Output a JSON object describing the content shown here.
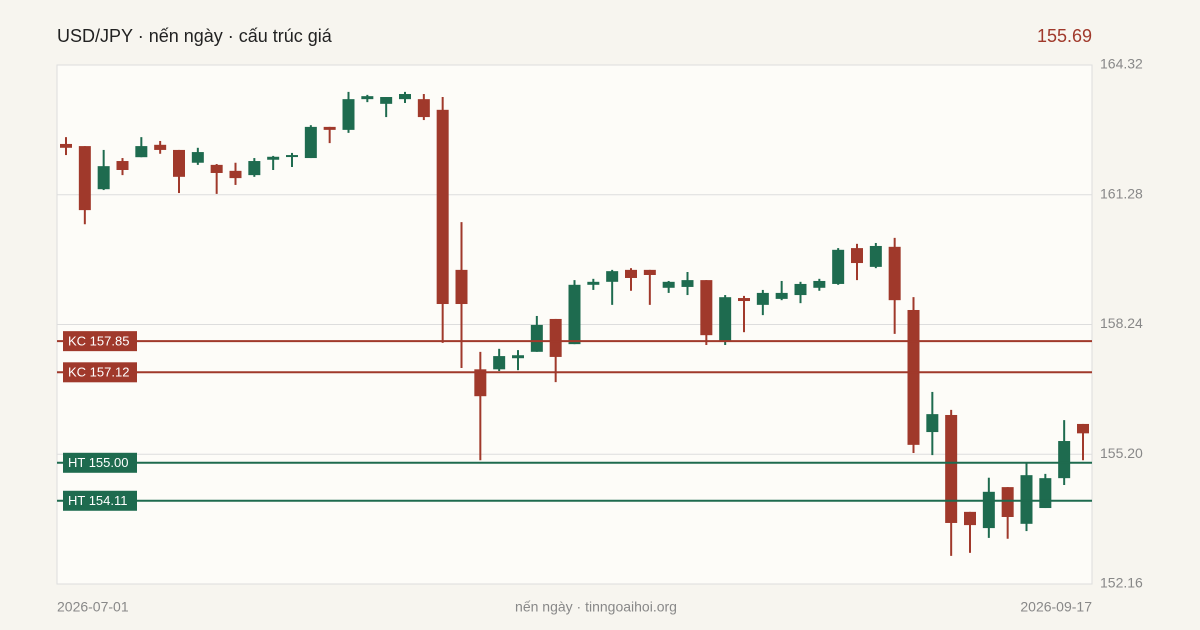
{
  "chart_data": {
    "type": "candlestick",
    "title": "USD/JPY · nến ngày · cấu trúc giá",
    "last_price": 155.69,
    "x_labels": [
      "2026-07-01",
      "2026-09-17"
    ],
    "footer": "nến ngày · tinngoaihoi.org",
    "up_color": "#1e6b4f",
    "down_color": "#a0392b",
    "ylim": [
      152.16,
      164.32
    ],
    "yticks": [
      164.32,
      161.28,
      158.24,
      {
        "value": 155.2,
        "label": "155.20"
      },
      152.16
    ],
    "grid": true,
    "open": [
      162.47,
      162.42,
      161.41,
      162.07,
      162.16,
      162.45,
      162.33,
      162.03,
      161.98,
      161.84,
      161.74,
      162.1,
      162.17,
      162.14,
      162.87,
      162.8,
      163.52,
      163.41,
      163.52,
      163.52,
      163.27,
      159.52,
      157.19,
      157.19,
      157.45,
      157.6,
      158.37,
      157.78,
      159.17,
      159.24,
      159.52,
      159.52,
      159.1,
      159.12,
      159.28,
      157.83,
      158.86,
      158.7,
      158.84,
      158.93,
      159.1,
      159.19,
      160.03,
      159.59,
      160.06,
      158.58,
      155.72,
      156.12,
      153.85,
      153.47,
      154.43,
      153.57,
      153.94,
      154.64,
      155.91
    ],
    "high": [
      162.63,
      162.42,
      162.33,
      162.14,
      162.63,
      162.54,
      162.33,
      162.38,
      162.0,
      162.03,
      162.14,
      162.19,
      162.26,
      162.91,
      162.87,
      163.69,
      163.62,
      163.57,
      163.69,
      163.64,
      163.57,
      160.64,
      157.6,
      157.67,
      157.64,
      158.44,
      158.37,
      159.28,
      159.31,
      159.52,
      159.56,
      159.52,
      159.26,
      159.47,
      159.28,
      158.93,
      158.91,
      159.05,
      159.26,
      159.24,
      159.31,
      160.03,
      160.13,
      160.15,
      160.27,
      158.88,
      156.66,
      156.24,
      153.85,
      154.65,
      154.43,
      154.99,
      154.74,
      156.0,
      155.91
    ],
    "low": [
      162.21,
      160.59,
      161.39,
      161.74,
      162.16,
      162.24,
      161.32,
      161.98,
      161.3,
      161.51,
      161.7,
      161.86,
      161.93,
      162.14,
      162.49,
      162.73,
      163.45,
      163.1,
      163.43,
      163.03,
      157.81,
      157.22,
      155.06,
      157.15,
      157.17,
      157.6,
      156.89,
      157.78,
      159.05,
      158.7,
      159.03,
      158.7,
      158.98,
      158.93,
      157.76,
      157.76,
      158.06,
      158.46,
      158.81,
      158.74,
      159.03,
      159.17,
      159.28,
      159.56,
      158.02,
      155.23,
      155.18,
      152.82,
      152.89,
      153.24,
      153.22,
      153.4,
      153.94,
      154.48,
      155.06
    ],
    "close": [
      162.38,
      160.92,
      161.95,
      161.86,
      162.42,
      162.33,
      161.7,
      162.28,
      161.79,
      161.67,
      162.07,
      162.17,
      162.21,
      162.87,
      162.8,
      163.52,
      163.59,
      163.57,
      163.64,
      163.1,
      158.72,
      158.72,
      156.56,
      157.5,
      157.52,
      158.23,
      157.48,
      159.17,
      159.24,
      159.49,
      159.33,
      159.4,
      159.24,
      159.28,
      157.99,
      158.88,
      158.79,
      158.98,
      158.98,
      159.19,
      159.26,
      159.99,
      159.68,
      160.08,
      158.81,
      155.42,
      156.14,
      153.59,
      153.54,
      154.32,
      153.73,
      154.71,
      154.64,
      155.51,
      155.69
    ],
    "levels": [
      {
        "label": "KC 157.85",
        "value": 157.85,
        "color": "#a0392b"
      },
      {
        "label": "KC 157.12",
        "value": 157.12,
        "color": "#a0392b"
      },
      {
        "label": "HT 155.00",
        "value": 155.0,
        "color": "#1e6b4f"
      },
      {
        "label": "HT 154.11",
        "value": 154.11,
        "color": "#1e6b4f"
      }
    ]
  }
}
